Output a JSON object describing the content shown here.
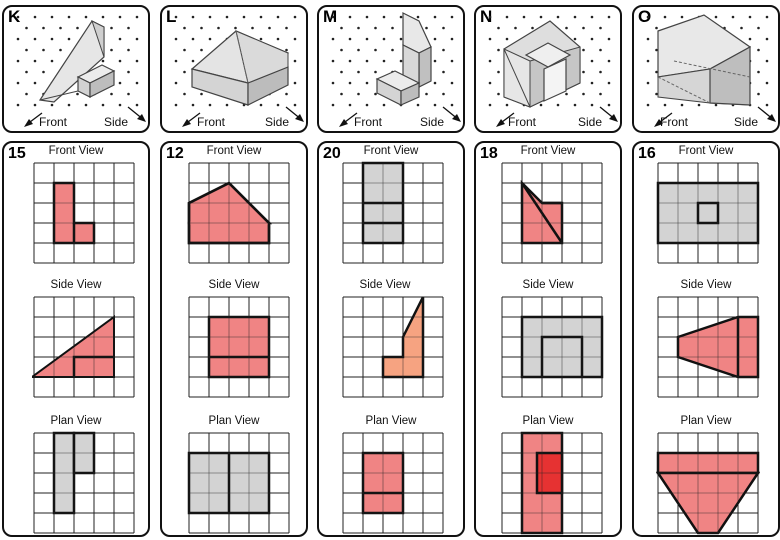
{
  "colors": {
    "red": "#f08484",
    "red_dark": "#e63232",
    "orange": "#f6a381",
    "grey": "#d3d3d3",
    "line": "#111111"
  },
  "panels": [
    {
      "letter": "K",
      "number": "15",
      "front": "Front",
      "side": "Side"
    },
    {
      "letter": "L",
      "number": "12",
      "front": "Front",
      "side": "Side"
    },
    {
      "letter": "M",
      "number": "20",
      "front": "Front",
      "side": "Side"
    },
    {
      "letter": "N",
      "number": "18",
      "front": "Front",
      "side": "Side"
    },
    {
      "letter": "O",
      "number": "16",
      "front": "Front",
      "side": "Side"
    }
  ],
  "view_titles": {
    "front": "Front View",
    "side": "Side View",
    "plan": "Plan View"
  }
}
